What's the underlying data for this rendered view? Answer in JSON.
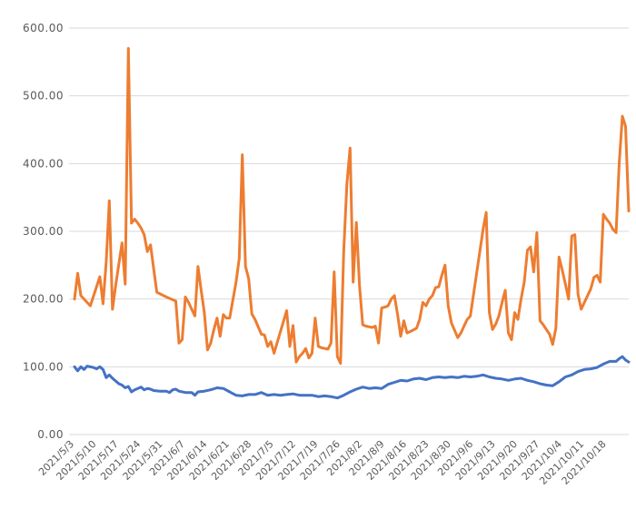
{
  "chart_data": {
    "type": "line",
    "title": "",
    "xlabel": "",
    "ylabel": "",
    "ylim": [
      0,
      600
    ],
    "y_ticks": [
      "0.00",
      "100.00",
      "200.00",
      "300.00",
      "400.00",
      "500.00",
      "600.00"
    ],
    "x_start": "2021/5/3",
    "x_ticks": [
      "2021/5/3",
      "2021/5/10",
      "2021/5/17",
      "2021/5/24",
      "2021/5/31",
      "2021/6/7",
      "2021/6/14",
      "2021/6/21",
      "2021/6/28",
      "2021/7/5",
      "2021/7/12",
      "2021/7/19",
      "2021/7/26",
      "2021/8/2",
      "2021/8/9",
      "2021/8/16",
      "2021/8/23",
      "2021/8/30",
      "2021/9/6",
      "2021/9/13",
      "2021/9/20",
      "2021/9/27",
      "2021/10/4",
      "2021/10/11",
      "2021/10/18"
    ],
    "grid": true,
    "legend": "none",
    "series": [
      {
        "color": "#ED7D31",
        "values": [
          [
            0,
            200
          ],
          [
            1,
            238
          ],
          [
            2,
            205
          ],
          [
            4,
            195
          ],
          [
            5,
            190
          ],
          [
            8,
            233
          ],
          [
            9,
            193
          ],
          [
            10,
            255
          ],
          [
            11,
            345
          ],
          [
            12,
            185
          ],
          [
            13,
            220
          ],
          [
            15,
            283
          ],
          [
            16,
            222
          ],
          [
            17,
            570
          ],
          [
            18,
            312
          ],
          [
            19,
            318
          ],
          [
            20,
            312
          ],
          [
            21,
            305
          ],
          [
            22,
            295
          ],
          [
            23,
            270
          ],
          [
            24,
            280
          ],
          [
            25,
            245
          ],
          [
            26,
            210
          ],
          [
            29,
            203
          ],
          [
            32,
            197
          ],
          [
            33,
            135
          ],
          [
            34,
            140
          ],
          [
            35,
            203
          ],
          [
            36,
            195
          ],
          [
            37,
            185
          ],
          [
            38,
            175
          ],
          [
            39,
            248
          ],
          [
            40,
            213
          ],
          [
            41,
            180
          ],
          [
            42,
            125
          ],
          [
            43,
            135
          ],
          [
            44,
            155
          ],
          [
            45,
            172
          ],
          [
            46,
            145
          ],
          [
            47,
            177
          ],
          [
            48,
            172
          ],
          [
            49,
            172
          ],
          [
            51,
            225
          ],
          [
            52,
            260
          ],
          [
            53,
            413
          ],
          [
            54,
            248
          ],
          [
            55,
            230
          ],
          [
            56,
            178
          ],
          [
            57,
            170
          ],
          [
            59,
            148
          ],
          [
            60,
            147
          ],
          [
            61,
            130
          ],
          [
            62,
            137
          ],
          [
            63,
            120
          ],
          [
            67,
            183
          ],
          [
            68,
            130
          ],
          [
            69,
            161
          ],
          [
            70,
            107
          ],
          [
            71,
            115
          ],
          [
            72,
            120
          ],
          [
            73,
            127
          ],
          [
            74,
            113
          ],
          [
            75,
            120
          ],
          [
            76,
            172
          ],
          [
            77,
            130
          ],
          [
            78,
            128
          ],
          [
            80,
            126
          ],
          [
            81,
            135
          ],
          [
            82,
            240
          ],
          [
            83,
            115
          ],
          [
            84,
            105
          ],
          [
            85,
            270
          ],
          [
            86,
            370
          ],
          [
            87,
            423
          ],
          [
            88,
            225
          ],
          [
            89,
            313
          ],
          [
            90,
            220
          ],
          [
            91,
            162
          ],
          [
            92,
            160
          ],
          [
            94,
            158
          ],
          [
            95,
            160
          ],
          [
            96,
            135
          ],
          [
            97,
            187
          ],
          [
            98,
            188
          ],
          [
            99,
            190
          ],
          [
            100,
            200
          ],
          [
            101,
            205
          ],
          [
            102,
            178
          ],
          [
            103,
            145
          ],
          [
            104,
            168
          ],
          [
            105,
            150
          ],
          [
            106,
            152
          ],
          [
            108,
            157
          ],
          [
            109,
            170
          ],
          [
            110,
            195
          ],
          [
            111,
            190
          ],
          [
            112,
            200
          ],
          [
            113,
            205
          ],
          [
            114,
            217
          ],
          [
            115,
            218
          ],
          [
            116,
            235
          ],
          [
            117,
            250
          ],
          [
            118,
            190
          ],
          [
            119,
            165
          ],
          [
            121,
            143
          ],
          [
            122,
            150
          ],
          [
            123,
            160
          ],
          [
            124,
            170
          ],
          [
            125,
            175
          ],
          [
            129,
            303
          ],
          [
            130,
            328
          ],
          [
            131,
            180
          ],
          [
            132,
            155
          ],
          [
            133,
            163
          ],
          [
            134,
            175
          ],
          [
            135,
            195
          ],
          [
            136,
            213
          ],
          [
            137,
            150
          ],
          [
            138,
            140
          ],
          [
            139,
            180
          ],
          [
            140,
            170
          ],
          [
            141,
            200
          ],
          [
            142,
            225
          ],
          [
            143,
            272
          ],
          [
            144,
            277
          ],
          [
            145,
            240
          ],
          [
            146,
            298
          ],
          [
            147,
            168
          ],
          [
            148,
            162
          ],
          [
            149,
            155
          ],
          [
            150,
            148
          ],
          [
            151,
            133
          ],
          [
            152,
            157
          ],
          [
            153,
            262
          ],
          [
            154,
            243
          ],
          [
            155,
            222
          ],
          [
            156,
            200
          ],
          [
            157,
            293
          ],
          [
            158,
            295
          ],
          [
            159,
            207
          ],
          [
            160,
            185
          ],
          [
            161,
            195
          ],
          [
            162,
            205
          ],
          [
            163,
            215
          ],
          [
            164,
            232
          ],
          [
            165,
            235
          ],
          [
            166,
            225
          ],
          [
            167,
            325
          ],
          [
            168,
            318
          ],
          [
            169,
            312
          ],
          [
            170,
            303
          ],
          [
            171,
            298
          ],
          [
            172,
            400
          ],
          [
            173,
            470
          ],
          [
            174,
            455
          ],
          [
            175,
            330
          ]
        ]
      },
      {
        "color": "#4472C4",
        "values": [
          [
            0,
            100
          ],
          [
            1,
            94
          ],
          [
            2,
            100
          ],
          [
            3,
            96
          ],
          [
            4,
            101
          ],
          [
            6,
            99
          ],
          [
            7,
            97
          ],
          [
            8,
            100
          ],
          [
            9,
            96
          ],
          [
            10,
            84
          ],
          [
            11,
            88
          ],
          [
            12,
            83
          ],
          [
            13,
            79
          ],
          [
            14,
            75
          ],
          [
            15,
            73
          ],
          [
            16,
            69
          ],
          [
            17,
            71
          ],
          [
            18,
            63
          ],
          [
            19,
            66
          ],
          [
            20,
            68
          ],
          [
            21,
            70
          ],
          [
            22,
            66
          ],
          [
            23,
            68
          ],
          [
            24,
            67
          ],
          [
            25,
            65
          ],
          [
            27,
            64
          ],
          [
            29,
            64
          ],
          [
            30,
            62
          ],
          [
            31,
            66
          ],
          [
            32,
            67
          ],
          [
            33,
            64
          ],
          [
            35,
            62
          ],
          [
            37,
            62
          ],
          [
            38,
            58
          ],
          [
            39,
            63
          ],
          [
            41,
            64
          ],
          [
            43,
            66
          ],
          [
            45,
            69
          ],
          [
            47,
            68
          ],
          [
            49,
            63
          ],
          [
            51,
            58
          ],
          [
            53,
            57
          ],
          [
            55,
            59
          ],
          [
            57,
            59
          ],
          [
            59,
            62
          ],
          [
            61,
            58
          ],
          [
            63,
            59
          ],
          [
            65,
            58
          ],
          [
            67,
            59
          ],
          [
            69,
            60
          ],
          [
            71,
            58
          ],
          [
            73,
            58
          ],
          [
            75,
            58
          ],
          [
            77,
            56
          ],
          [
            79,
            57
          ],
          [
            81,
            56
          ],
          [
            83,
            54
          ],
          [
            85,
            58
          ],
          [
            87,
            63
          ],
          [
            89,
            67
          ],
          [
            91,
            70
          ],
          [
            93,
            68
          ],
          [
            95,
            69
          ],
          [
            97,
            68
          ],
          [
            99,
            74
          ],
          [
            101,
            77
          ],
          [
            103,
            80
          ],
          [
            105,
            79
          ],
          [
            107,
            82
          ],
          [
            109,
            83
          ],
          [
            111,
            81
          ],
          [
            113,
            84
          ],
          [
            115,
            85
          ],
          [
            117,
            84
          ],
          [
            119,
            85
          ],
          [
            121,
            84
          ],
          [
            123,
            86
          ],
          [
            125,
            85
          ],
          [
            127,
            86
          ],
          [
            129,
            88
          ],
          [
            131,
            85
          ],
          [
            133,
            83
          ],
          [
            135,
            82
          ],
          [
            137,
            80
          ],
          [
            139,
            82
          ],
          [
            141,
            83
          ],
          [
            143,
            80
          ],
          [
            145,
            78
          ],
          [
            147,
            75
          ],
          [
            149,
            73
          ],
          [
            151,
            72
          ],
          [
            153,
            78
          ],
          [
            155,
            85
          ],
          [
            157,
            88
          ],
          [
            159,
            93
          ],
          [
            161,
            96
          ],
          [
            163,
            97
          ],
          [
            165,
            99
          ],
          [
            167,
            104
          ],
          [
            169,
            108
          ],
          [
            171,
            108
          ],
          [
            172,
            112
          ],
          [
            173,
            115
          ],
          [
            174,
            110
          ],
          [
            175,
            107
          ]
        ]
      }
    ]
  }
}
